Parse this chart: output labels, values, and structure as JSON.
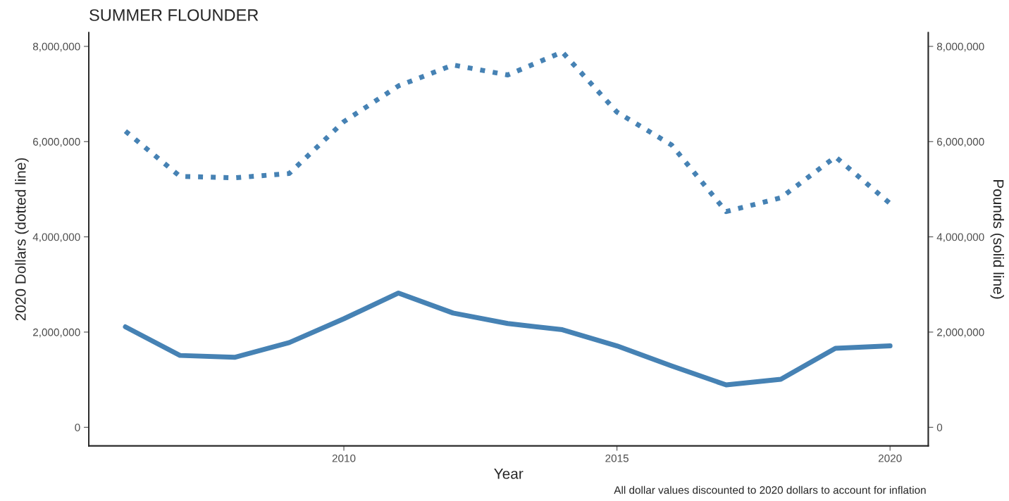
{
  "chart_data": {
    "type": "line",
    "title": "SUMMER FLOUNDER",
    "xlabel": "Year",
    "ylabel": "2020 Dollars (dotted line)",
    "y2label": "Pounds (solid line)",
    "annotations": [
      "All dollar values discounted to 2020 dollars to account for inflation"
    ],
    "x": [
      2006,
      2007,
      2008,
      2009,
      2010,
      2011,
      2012,
      2013,
      2014,
      2015,
      2016,
      2017,
      2018,
      2019,
      2020
    ],
    "series": [
      {
        "color": "#4682b4",
        "line_style": "dotted",
        "values": [
          6220000,
          5270000,
          5240000,
          5330000,
          6420000,
          7170000,
          7610000,
          7400000,
          7880000,
          6620000,
          5930000,
          4530000,
          4820000,
          5680000,
          4700000
        ]
      },
      {
        "color": "#4682b4",
        "line_style": "solid",
        "values": [
          2110000,
          1510000,
          1470000,
          1780000,
          2280000,
          2820000,
          2400000,
          2180000,
          2050000,
          1710000,
          1290000,
          890000,
          1010000,
          1660000,
          1710000
        ]
      }
    ],
    "xlim": [
      2005.33,
      2020.7
    ],
    "xticks": [
      2010,
      2015,
      2020
    ],
    "ylim": [
      -390000,
      8290000
    ],
    "yticks": [
      0,
      {
        "value": 2000000,
        "label": "2,000,000"
      },
      {
        "value": 4000000,
        "label": "4,000,000"
      },
      {
        "value": 6000000,
        "label": "6,000,000"
      },
      {
        "value": 8000000,
        "label": "8,000,000"
      }
    ],
    "y2lim": [
      -390000,
      8290000
    ],
    "y2ticks": [
      0,
      {
        "value": 2000000,
        "label": "2,000,000"
      },
      {
        "value": 4000000,
        "label": "4,000,000"
      },
      {
        "value": 6000000,
        "label": "6,000,000"
      },
      {
        "value": 8000000,
        "label": "8,000,000"
      }
    ],
    "grid": false,
    "legend": false
  }
}
